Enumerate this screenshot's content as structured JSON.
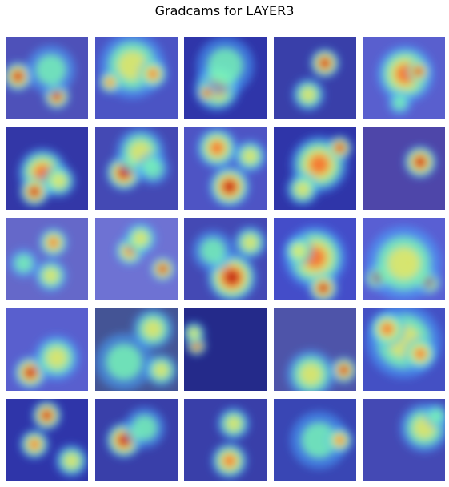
{
  "figure": {
    "title": "Gradcams for LAYER3"
  },
  "heatmap_colors": {
    "background_low": "#3a3fd9",
    "cool": "#47a6ff",
    "mid": "#7fffb0",
    "warm": "#f4e45a",
    "hot": "#ff5a1e",
    "peak": "#b01010"
  },
  "tiles": [
    {
      "base": "#5a5ba8",
      "blobs": [
        [
          0.15,
          0.48,
          0.18,
          "peak"
        ],
        [
          0.62,
          0.72,
          0.16,
          "peak"
        ],
        [
          0.55,
          0.4,
          0.3,
          "mid"
        ]
      ]
    },
    {
      "base": "#5560b8",
      "blobs": [
        [
          0.45,
          0.35,
          0.4,
          "warm"
        ],
        [
          0.7,
          0.45,
          0.18,
          "hot"
        ],
        [
          0.18,
          0.55,
          0.14,
          "hot"
        ]
      ]
    },
    {
      "base": "#2a3090",
      "blobs": [
        [
          0.4,
          0.62,
          0.28,
          "hot"
        ],
        [
          0.28,
          0.68,
          0.12,
          "peak"
        ],
        [
          0.5,
          0.35,
          0.35,
          "mid"
        ]
      ]
    },
    {
      "base": "#3a3f90",
      "blobs": [
        [
          0.62,
          0.32,
          0.18,
          "peak"
        ],
        [
          0.42,
          0.7,
          0.2,
          "warm"
        ]
      ]
    },
    {
      "base": "#6a70c8",
      "blobs": [
        [
          0.52,
          0.45,
          0.35,
          "hot"
        ],
        [
          0.68,
          0.42,
          0.14,
          "peak"
        ],
        [
          0.45,
          0.8,
          0.15,
          "mid"
        ]
      ]
    },
    {
      "base": "#30348c",
      "blobs": [
        [
          0.45,
          0.55,
          0.3,
          "hot"
        ],
        [
          0.35,
          0.78,
          0.18,
          "peak"
        ],
        [
          0.65,
          0.65,
          0.2,
          "warm"
        ]
      ]
    },
    {
      "base": "#4a4fa0",
      "blobs": [
        [
          0.35,
          0.55,
          0.22,
          "peak"
        ],
        [
          0.55,
          0.3,
          0.3,
          "warm"
        ],
        [
          0.7,
          0.5,
          0.2,
          "mid"
        ]
      ]
    },
    {
      "base": "#5a60b8",
      "blobs": [
        [
          0.55,
          0.72,
          0.25,
          "peak"
        ],
        [
          0.4,
          0.25,
          0.25,
          "hot"
        ],
        [
          0.8,
          0.35,
          0.2,
          "warm"
        ]
      ]
    },
    {
      "base": "#2a3090",
      "blobs": [
        [
          0.55,
          0.45,
          0.35,
          "hot"
        ],
        [
          0.8,
          0.25,
          0.15,
          "peak"
        ],
        [
          0.35,
          0.75,
          0.2,
          "warm"
        ]
      ]
    },
    {
      "base": "#5a4a90",
      "blobs": [
        [
          0.7,
          0.42,
          0.2,
          "peak"
        ]
      ]
    },
    {
      "base": "#7d7ec0",
      "blobs": [
        [
          0.58,
          0.3,
          0.18,
          "hot"
        ],
        [
          0.22,
          0.55,
          0.18,
          "mid"
        ],
        [
          0.55,
          0.7,
          0.2,
          "warm"
        ]
      ]
    },
    {
      "base": "#8a8ed0",
      "blobs": [
        [
          0.42,
          0.4,
          0.18,
          "hot"
        ],
        [
          0.82,
          0.62,
          0.15,
          "peak"
        ],
        [
          0.55,
          0.25,
          0.2,
          "warm"
        ]
      ]
    },
    {
      "base": "#4a4fa0",
      "blobs": [
        [
          0.58,
          0.72,
          0.3,
          "peak"
        ],
        [
          0.35,
          0.4,
          0.25,
          "mid"
        ],
        [
          0.8,
          0.3,
          0.2,
          "warm"
        ]
      ]
    },
    {
      "base": "#4a55c0",
      "blobs": [
        [
          0.5,
          0.48,
          0.38,
          "hot"
        ],
        [
          0.6,
          0.85,
          0.18,
          "peak"
        ],
        [
          0.3,
          0.4,
          0.18,
          "warm"
        ]
      ]
    },
    {
      "base": "#6a70d0",
      "blobs": [
        [
          0.18,
          0.72,
          0.16,
          "peak"
        ],
        [
          0.55,
          0.55,
          0.16,
          "peak"
        ],
        [
          0.8,
          0.78,
          0.15,
          "peak"
        ],
        [
          0.5,
          0.55,
          0.45,
          "warm"
        ]
      ]
    },
    {
      "base": "#6a70c8",
      "blobs": [
        [
          0.3,
          0.78,
          0.2,
          "peak"
        ],
        [
          0.62,
          0.6,
          0.28,
          "warm"
        ]
      ]
    },
    {
      "base": "#4a6070",
      "blobs": [
        [
          0.7,
          0.25,
          0.25,
          "warm"
        ],
        [
          0.35,
          0.65,
          0.35,
          "mid"
        ],
        [
          0.8,
          0.75,
          0.2,
          "warm"
        ]
      ]
    },
    {
      "base": "#1a2060",
      "blobs": [
        [
          0.15,
          0.45,
          0.12,
          "peak"
        ],
        [
          0.12,
          0.3,
          0.14,
          "warm"
        ]
      ]
    },
    {
      "base": "#5a6090",
      "blobs": [
        [
          0.85,
          0.75,
          0.16,
          "peak"
        ],
        [
          0.45,
          0.8,
          0.3,
          "warm"
        ]
      ]
    },
    {
      "base": "#4a5ab8",
      "blobs": [
        [
          0.5,
          0.4,
          0.45,
          "warm"
        ],
        [
          0.3,
          0.25,
          0.22,
          "hot"
        ],
        [
          0.7,
          0.55,
          0.2,
          "hot"
        ]
      ]
    },
    {
      "base": "#2a3090",
      "blobs": [
        [
          0.5,
          0.2,
          0.18,
          "peak"
        ],
        [
          0.35,
          0.55,
          0.18,
          "hot"
        ],
        [
          0.8,
          0.75,
          0.2,
          "warm"
        ]
      ]
    },
    {
      "base": "#3a3f90",
      "blobs": [
        [
          0.35,
          0.5,
          0.22,
          "peak"
        ],
        [
          0.6,
          0.35,
          0.25,
          "mid"
        ]
      ]
    },
    {
      "base": "#3a3f90",
      "blobs": [
        [
          0.6,
          0.3,
          0.2,
          "warm"
        ],
        [
          0.55,
          0.75,
          0.22,
          "hot"
        ]
      ]
    },
    {
      "base": "#3a4aa0",
      "blobs": [
        [
          0.55,
          0.5,
          0.35,
          "mid"
        ],
        [
          0.8,
          0.5,
          0.16,
          "hot"
        ]
      ]
    },
    {
      "base": "#4a4fa0",
      "blobs": [
        [
          0.75,
          0.35,
          0.3,
          "warm"
        ],
        [
          0.9,
          0.2,
          0.15,
          "mid"
        ]
      ]
    }
  ]
}
